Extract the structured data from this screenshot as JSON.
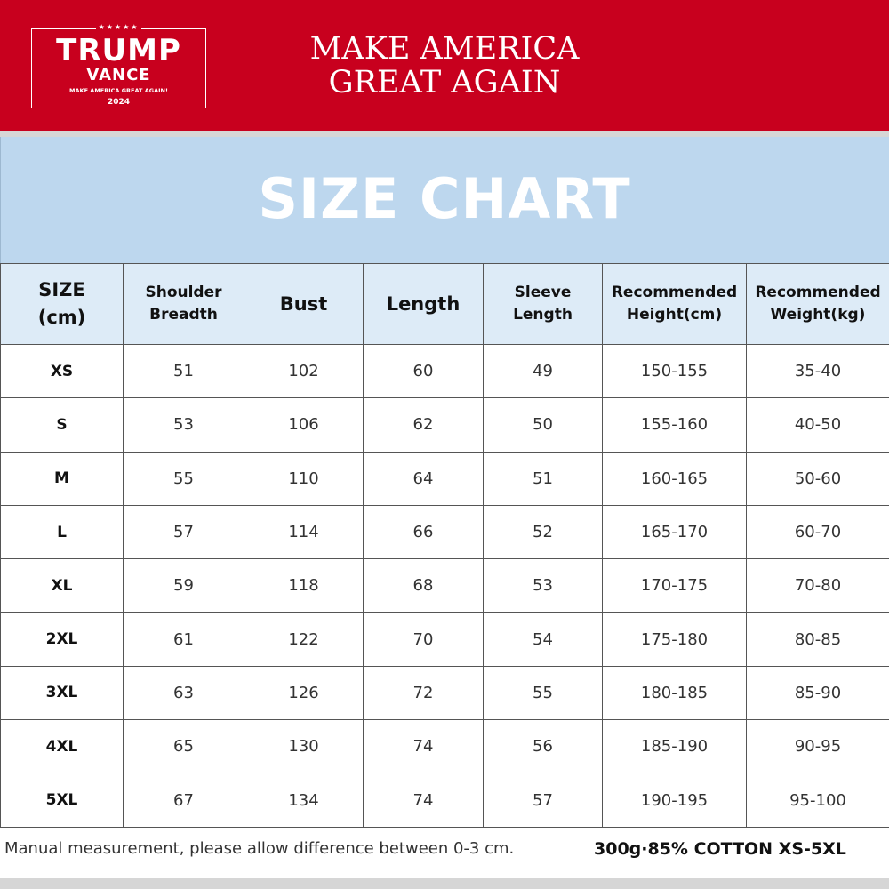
{
  "banner": {
    "logo": {
      "stars": "★★★★★",
      "line1": "TRUMP",
      "line2": "VANCE",
      "line3": "MAKE AMERICA GREAT AGAIN!",
      "line4": "2024"
    },
    "slogan_line1": "MAKE AMERICA",
    "slogan_line2": "GREAT AGAIN",
    "color": "#c8001e"
  },
  "title": "SIZE CHART",
  "table": {
    "headers": [
      {
        "line1": "SIZE",
        "line2": "(cm)"
      },
      {
        "line1": "Shoulder",
        "line2": "Breadth"
      },
      {
        "line1": "Bust",
        "line2": ""
      },
      {
        "line1": "Length",
        "line2": ""
      },
      {
        "line1": "Sleeve",
        "line2": "Length"
      },
      {
        "line1": "Recommended",
        "line2": "Height(cm)"
      },
      {
        "line1": "Recommended",
        "line2": "Weight(kg)"
      }
    ],
    "rows": [
      [
        "XS",
        "51",
        "102",
        "60",
        "49",
        "150-155",
        "35-40"
      ],
      [
        "S",
        "53",
        "106",
        "62",
        "50",
        "155-160",
        "40-50"
      ],
      [
        "M",
        "55",
        "110",
        "64",
        "51",
        "160-165",
        "50-60"
      ],
      [
        "L",
        "57",
        "114",
        "66",
        "52",
        "165-170",
        "60-70"
      ],
      [
        "XL",
        "59",
        "118",
        "68",
        "53",
        "170-175",
        "70-80"
      ],
      [
        "2XL",
        "61",
        "122",
        "70",
        "54",
        "175-180",
        "80-85"
      ],
      [
        "3XL",
        "63",
        "126",
        "72",
        "55",
        "180-185",
        "85-90"
      ],
      [
        "4XL",
        "65",
        "130",
        "74",
        "56",
        "185-190",
        "90-95"
      ],
      [
        "5XL",
        "67",
        "134",
        "74",
        "57",
        "190-195",
        "95-100"
      ]
    ]
  },
  "footer": {
    "note": "Manual measurement, please allow difference between 0-3 cm.",
    "spec": "300g·85% COTTON  XS-5XL"
  }
}
